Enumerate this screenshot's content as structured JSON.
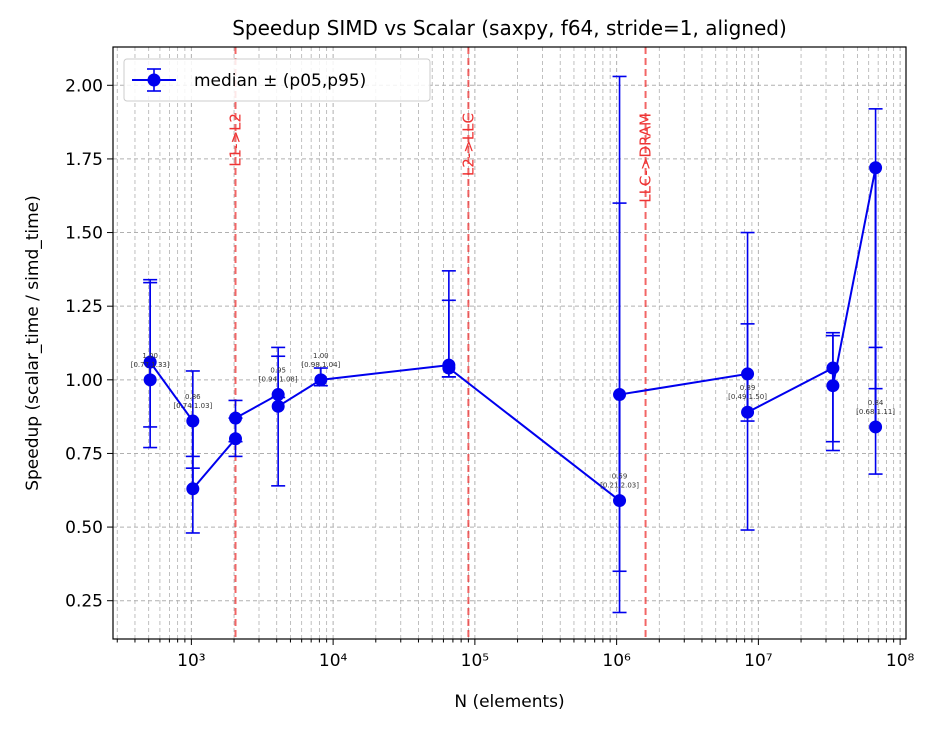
{
  "chart_data": {
    "type": "line",
    "title": "Speedup SIMD vs Scalar (saxpy, f64, stride=1, aligned)",
    "xlabel": "N (elements)",
    "ylabel": "Speedup (scalar_time / simd_time)",
    "xscale": "log",
    "xlim": [
      280,
      110000000
    ],
    "ylim": [
      0.12,
      2.13
    ],
    "grid": true,
    "legend": {
      "placement": "upper-left",
      "entries": [
        "median ± (p05,p95)"
      ]
    },
    "colors": {
      "series": "#0000ee",
      "vline": "#ee3333",
      "grid": "#b0b0b0"
    },
    "xticks": [
      {
        "value": 1000,
        "label": "10³"
      },
      {
        "value": 10000,
        "label": "10⁴"
      },
      {
        "value": 100000,
        "label": "10⁵"
      },
      {
        "value": 1000000,
        "label": "10⁶"
      },
      {
        "value": 10000000,
        "label": "10⁷"
      },
      {
        "value": 100000000,
        "label": "10⁸"
      }
    ],
    "yticks": [
      0.25,
      0.5,
      0.75,
      1.0,
      1.25,
      1.5,
      1.75,
      2.0
    ],
    "ytick_labels": [
      "0.25",
      "0.50",
      "0.75",
      "1.00",
      "1.25",
      "1.50",
      "1.75",
      "2.00"
    ],
    "vlines": [
      {
        "x": 2048,
        "label": "L1->L2"
      },
      {
        "x": 90000,
        "label": "L2->LLC"
      },
      {
        "x": 1600000,
        "label": "LLC->DRAM"
      }
    ],
    "series": [
      {
        "name": "median ± (p05,p95)",
        "points": [
          {
            "x": 512,
            "y": 1.0,
            "lo": 0.77,
            "hi": 1.33,
            "annot": [
              "1.00",
              "[0.77,1.33]"
            ]
          },
          {
            "x": 512,
            "y": 1.06,
            "lo": 0.84,
            "hi": 1.34
          },
          {
            "x": 1024,
            "y": 0.86,
            "lo": 0.74,
            "hi": 1.03,
            "annot": [
              "0.86",
              "[0.74,1.03]"
            ]
          },
          {
            "x": 1024,
            "y": 0.63,
            "lo": 0.48,
            "hi": 0.7
          },
          {
            "x": 2048,
            "y": 0.8,
            "lo": 0.74,
            "hi": 0.87
          },
          {
            "x": 2048,
            "y": 0.87,
            "lo": 0.79,
            "hi": 0.93
          },
          {
            "x": 4096,
            "y": 0.95,
            "lo": 0.94,
            "hi": 1.08,
            "annot": [
              "0.95",
              "[0.94,1.08]"
            ]
          },
          {
            "x": 4096,
            "y": 0.91,
            "lo": 0.64,
            "hi": 1.11
          },
          {
            "x": 8192,
            "y": 1.0,
            "lo": 0.98,
            "hi": 1.04,
            "annot": [
              "1.00",
              "[0.98,1.04]"
            ]
          },
          {
            "x": 65536,
            "y": 1.05,
            "lo": 1.01,
            "hi": 1.37
          },
          {
            "x": 65536,
            "y": 1.04,
            "lo": 1.01,
            "hi": 1.27
          },
          {
            "x": 1048576,
            "y": 0.59,
            "lo": 0.21,
            "hi": 2.03,
            "annot": [
              "0.59",
              "[0.21,2.03]"
            ]
          },
          {
            "x": 1048576,
            "y": 0.95,
            "lo": 0.35,
            "hi": 1.6
          },
          {
            "x": 8388608,
            "y": 1.02,
            "lo": 0.86,
            "hi": 1.19
          },
          {
            "x": 8388608,
            "y": 0.89,
            "lo": 0.49,
            "hi": 1.5,
            "annot": [
              "0.89",
              "[0.49,1.50]"
            ]
          },
          {
            "x": 33554432,
            "y": 1.04,
            "lo": 0.79,
            "hi": 1.16
          },
          {
            "x": 33554432,
            "y": 0.98,
            "lo": 0.76,
            "hi": 1.15
          },
          {
            "x": 67108864,
            "y": 1.72,
            "lo": 0.97,
            "hi": 1.92
          },
          {
            "x": 67108864,
            "y": 0.84,
            "lo": 0.68,
            "hi": 1.11,
            "annot": [
              "0.84",
              "[0.68,1.11]"
            ]
          }
        ]
      }
    ]
  }
}
